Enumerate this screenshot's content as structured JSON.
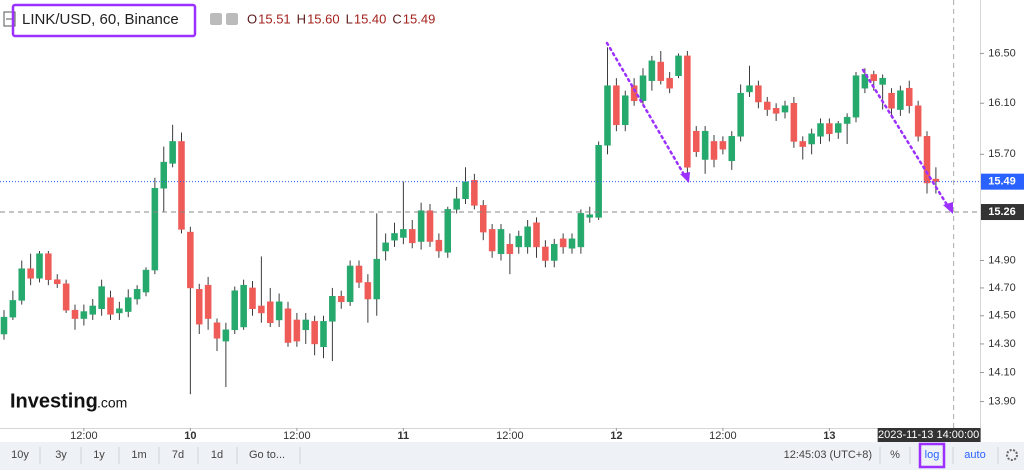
{
  "chart_data": {
    "type": "candlestick",
    "title": "LINK/USD, 60, Binance",
    "ohlc_legend": [
      {
        "name": "O",
        "value": "15.51"
      },
      {
        "name": "H",
        "value": "15.60"
      },
      {
        "name": "L",
        "value": "15.40"
      },
      {
        "name": "C",
        "value": "15.49"
      }
    ],
    "up_color": "#26a96c",
    "down_color": "#ef5b57",
    "wick_color": "#3c3c3c",
    "log_scale": true,
    "ylim": [
      13.72,
      16.94
    ],
    "yticks": [
      {
        "value": 16.5,
        "label": "16.50"
      },
      {
        "value": 16.1,
        "label": "16.10"
      },
      {
        "value": 15.7,
        "label": "15.70"
      },
      {
        "value": 14.9,
        "label": "14.90"
      },
      {
        "value": 14.7,
        "label": "14.70"
      },
      {
        "value": 14.5,
        "label": "14.50"
      },
      {
        "value": 14.3,
        "label": "14.30"
      },
      {
        "value": 14.1,
        "label": "14.10"
      },
      {
        "value": 13.9,
        "label": "13.90"
      }
    ],
    "xlim": [
      -0.45,
      109.97
    ],
    "xticks": [
      {
        "value": 9,
        "label": "12:00"
      },
      {
        "value": 21,
        "label": "10"
      },
      {
        "value": 33,
        "label": "12:00"
      },
      {
        "value": 45,
        "label": "11"
      },
      {
        "value": 57,
        "label": "12:00"
      },
      {
        "value": 69,
        "label": "12"
      },
      {
        "value": 81,
        "label": "12:00"
      },
      {
        "value": 93,
        "label": "13"
      }
    ],
    "current_price": {
      "value": 15.49,
      "label": "15.49",
      "color": "#2962ff"
    },
    "crosshair": {
      "price": {
        "value": 15.26,
        "label": "15.26"
      },
      "x": 107,
      "time": "2023-11-13 14:00:00"
    },
    "open": [
      14.37,
      14.49,
      14.61,
      14.84,
      14.77,
      14.95,
      14.76,
      14.73,
      14.54,
      14.48,
      14.51,
      14.55,
      14.63,
      14.52,
      14.53,
      14.62,
      14.67,
      14.83,
      15.44,
      15.63,
      15.8,
      15.11,
      14.69,
      14.72,
      14.45,
      14.32,
      14.4,
      14.42,
      14.7,
      14.57,
      14.6,
      14.47,
      14.55,
      14.47,
      14.4,
      14.46,
      14.28,
      14.46,
      14.64,
      14.6,
      14.86,
      14.74,
      14.62,
      14.97,
      15.05,
      15.07,
      15.13,
      15.04,
      15.27,
      15.05,
      14.96,
      15.28,
      15.36,
      15.5,
      15.31,
      15.13,
      14.95,
      15.02,
      15.0,
      15.0,
      15.18,
      15.0,
      14.9,
      15.06,
      14.99,
      15.0,
      15.22,
      15.22,
      15.77,
      16.24,
      15.93,
      16.24,
      16.12,
      16.28,
      16.43,
      16.3,
      16.32,
      16.48,
      15.88,
      15.66,
      15.8,
      15.8,
      15.65,
      15.84,
      16.19,
      16.24,
      16.11,
      16.06,
      16.03,
      16.1,
      15.8,
      15.78,
      15.84,
      15.94,
      15.87,
      15.94,
      15.99,
      16.22,
      16.33,
      16.25,
      16.18,
      16.05,
      16.22,
      16.08,
      15.84,
      15.51
    ],
    "high": [
      14.54,
      14.68,
      14.9,
      14.95,
      14.97,
      14.97,
      14.8,
      14.76,
      14.58,
      14.58,
      14.62,
      14.76,
      14.68,
      14.6,
      14.69,
      14.72,
      14.85,
      15.52,
      15.76,
      15.93,
      15.87,
      15.15,
      14.73,
      14.78,
      14.48,
      14.45,
      14.71,
      14.76,
      14.75,
      14.93,
      14.7,
      14.66,
      14.6,
      14.52,
      14.52,
      14.5,
      14.5,
      14.7,
      14.68,
      14.9,
      14.9,
      14.8,
      15.25,
      15.1,
      15.18,
      15.49,
      15.2,
      15.33,
      15.32,
      15.1,
      15.3,
      15.45,
      15.6,
      15.55,
      15.35,
      15.17,
      15.17,
      15.1,
      15.12,
      15.2,
      15.22,
      15.05,
      15.06,
      15.1,
      15.1,
      15.28,
      15.3,
      15.8,
      16.55,
      16.3,
      16.2,
      16.3,
      16.38,
      16.48,
      16.52,
      16.35,
      16.5,
      16.52,
      15.92,
      15.92,
      15.85,
      15.84,
      15.88,
      16.25,
      16.4,
      16.28,
      16.15,
      16.1,
      16.12,
      16.15,
      15.84,
      15.9,
      15.98,
      15.98,
      15.96,
      16.02,
      16.35,
      16.38,
      16.36,
      16.33,
      16.22,
      16.24,
      16.28,
      16.12,
      15.88,
      15.6
    ],
    "low": [
      14.33,
      14.47,
      14.58,
      14.72,
      14.74,
      14.72,
      14.7,
      14.52,
      14.4,
      14.43,
      14.47,
      14.5,
      14.47,
      14.47,
      14.49,
      14.58,
      14.64,
      14.8,
      15.26,
      15.6,
      15.1,
      13.95,
      14.37,
      14.4,
      14.25,
      14.0,
      14.37,
      14.4,
      14.5,
      14.45,
      14.42,
      14.42,
      14.28,
      14.28,
      14.3,
      14.22,
      14.2,
      14.18,
      14.55,
      14.57,
      14.7,
      14.45,
      14.5,
      14.9,
      15.0,
      15.02,
      14.99,
      14.98,
      15.0,
      14.92,
      14.92,
      15.25,
      15.32,
      15.28,
      15.05,
      14.92,
      14.9,
      14.8,
      14.95,
      14.95,
      14.92,
      14.85,
      14.85,
      14.95,
      14.95,
      14.95,
      15.18,
      15.2,
      15.7,
      15.88,
      15.88,
      16.08,
      16.08,
      16.2,
      16.25,
      16.18,
      16.3,
      15.55,
      15.68,
      15.55,
      15.6,
      15.7,
      15.58,
      15.8,
      16.15,
      16.06,
      16.0,
      15.96,
      15.98,
      15.75,
      15.66,
      15.7,
      15.78,
      15.8,
      15.82,
      15.78,
      15.95,
      16.18,
      16.2,
      16.05,
      16.0,
      16.0,
      16.02,
      15.8,
      15.4,
      15.4
    ],
    "close": [
      14.49,
      14.61,
      14.84,
      14.77,
      14.95,
      14.76,
      14.73,
      14.54,
      14.48,
      14.53,
      14.57,
      14.71,
      14.51,
      14.55,
      14.63,
      14.69,
      14.83,
      15.44,
      15.64,
      15.8,
      15.13,
      14.7,
      14.44,
      14.48,
      14.34,
      14.4,
      14.68,
      14.72,
      14.55,
      14.52,
      14.45,
      14.6,
      14.31,
      14.32,
      14.47,
      14.3,
      14.46,
      14.64,
      14.6,
      14.86,
      14.74,
      14.62,
      14.91,
      15.03,
      15.1,
      15.13,
      15.03,
      15.27,
      15.04,
      14.97,
      15.28,
      15.36,
      15.49,
      15.31,
      15.11,
      14.97,
      15.13,
      14.95,
      15.08,
      15.15,
      15.0,
      14.9,
      15.02,
      15.0,
      15.06,
      15.25,
      15.24,
      15.77,
      16.24,
      15.93,
      16.16,
      16.12,
      16.32,
      16.44,
      16.28,
      16.22,
      16.48,
      15.6,
      15.72,
      15.88,
      15.66,
      15.74,
      15.84,
      16.18,
      16.24,
      16.11,
      16.05,
      16.02,
      16.08,
      15.8,
      15.76,
      15.86,
      15.94,
      15.86,
      15.94,
      15.99,
      16.32,
      16.33,
      16.28,
      16.3,
      16.06,
      16.2,
      16.08,
      15.84,
      15.48,
      15.49
    ]
  },
  "logo": {
    "brand": "Investing",
    "suffix": ".com"
  },
  "toolbar": {
    "ranges": [
      "10y",
      "3y",
      "1y",
      "1m",
      "7d",
      "1d"
    ],
    "goto": "Go to...",
    "clock": "12:45:03 (UTC+8)",
    "percent": "%",
    "log": "log",
    "auto": "auto"
  }
}
